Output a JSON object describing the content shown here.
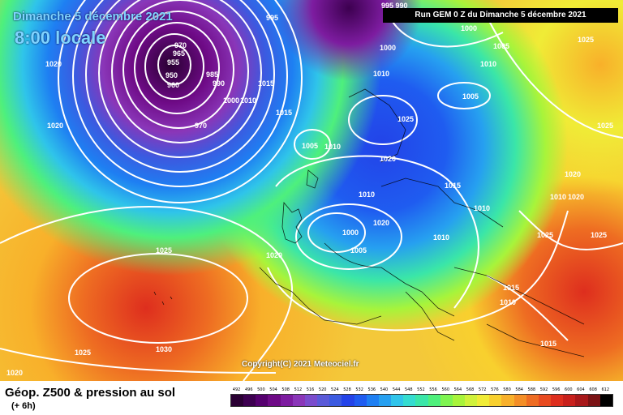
{
  "header": {
    "date": "Dimanche 5 décembre 2021",
    "time": "8:00 locale",
    "run": "Run GEM 0 Z du Dimanche 5 décembre 2021"
  },
  "map": {
    "copyright": "Copyright(C) 2021 Meteociel.fr",
    "pressure_labels": [
      "995",
      "970",
      "965",
      "955",
      "950",
      "960",
      "985",
      "990",
      "1000",
      "1010",
      "970",
      "1015",
      "1015",
      "1020",
      "1020",
      "1020",
      "1025",
      "1025",
      "1030",
      "1020",
      "1005",
      "1010",
      "1025",
      "1020",
      "1010",
      "1000",
      "1005",
      "1020",
      "1015",
      "1010",
      "1010",
      "1005",
      "1005",
      "1010",
      "1000",
      "1025",
      "1025",
      "1020",
      "1010",
      "1025",
      "1025",
      "1015",
      "1010",
      "1015",
      "995 990",
      "1000",
      "1020",
      "1010"
    ]
  },
  "footer": {
    "title": "Géop. Z500 & pression au sol",
    "subtitle": "(+ 6h)",
    "legend_ticks": [
      "492",
      "496",
      "500",
      "504",
      "508",
      "512",
      "516",
      "520",
      "524",
      "528",
      "532",
      "536",
      "540",
      "544",
      "548",
      "552",
      "556",
      "560",
      "564",
      "568",
      "572",
      "576",
      "580",
      "584",
      "588",
      "592",
      "596",
      "600",
      "604",
      "608",
      "612"
    ],
    "legend_colors": [
      "#2a0033",
      "#3d0050",
      "#55006e",
      "#6e0a86",
      "#7d1ca0",
      "#8a36b8",
      "#7a4ccc",
      "#5a5ad8",
      "#3b5ae0",
      "#2343e8",
      "#1f5cf0",
      "#1e7ff2",
      "#26a0f0",
      "#2fc4ea",
      "#34dcd0",
      "#3ae6a8",
      "#4ef07c",
      "#7ef450",
      "#a8f43a",
      "#d0f23a",
      "#f0ec36",
      "#f8d02e",
      "#f8b02a",
      "#f48e26",
      "#ee6c22",
      "#e84a20",
      "#de2e1e",
      "#c8201c",
      "#a8181a",
      "#7a1214",
      "#000000"
    ]
  }
}
